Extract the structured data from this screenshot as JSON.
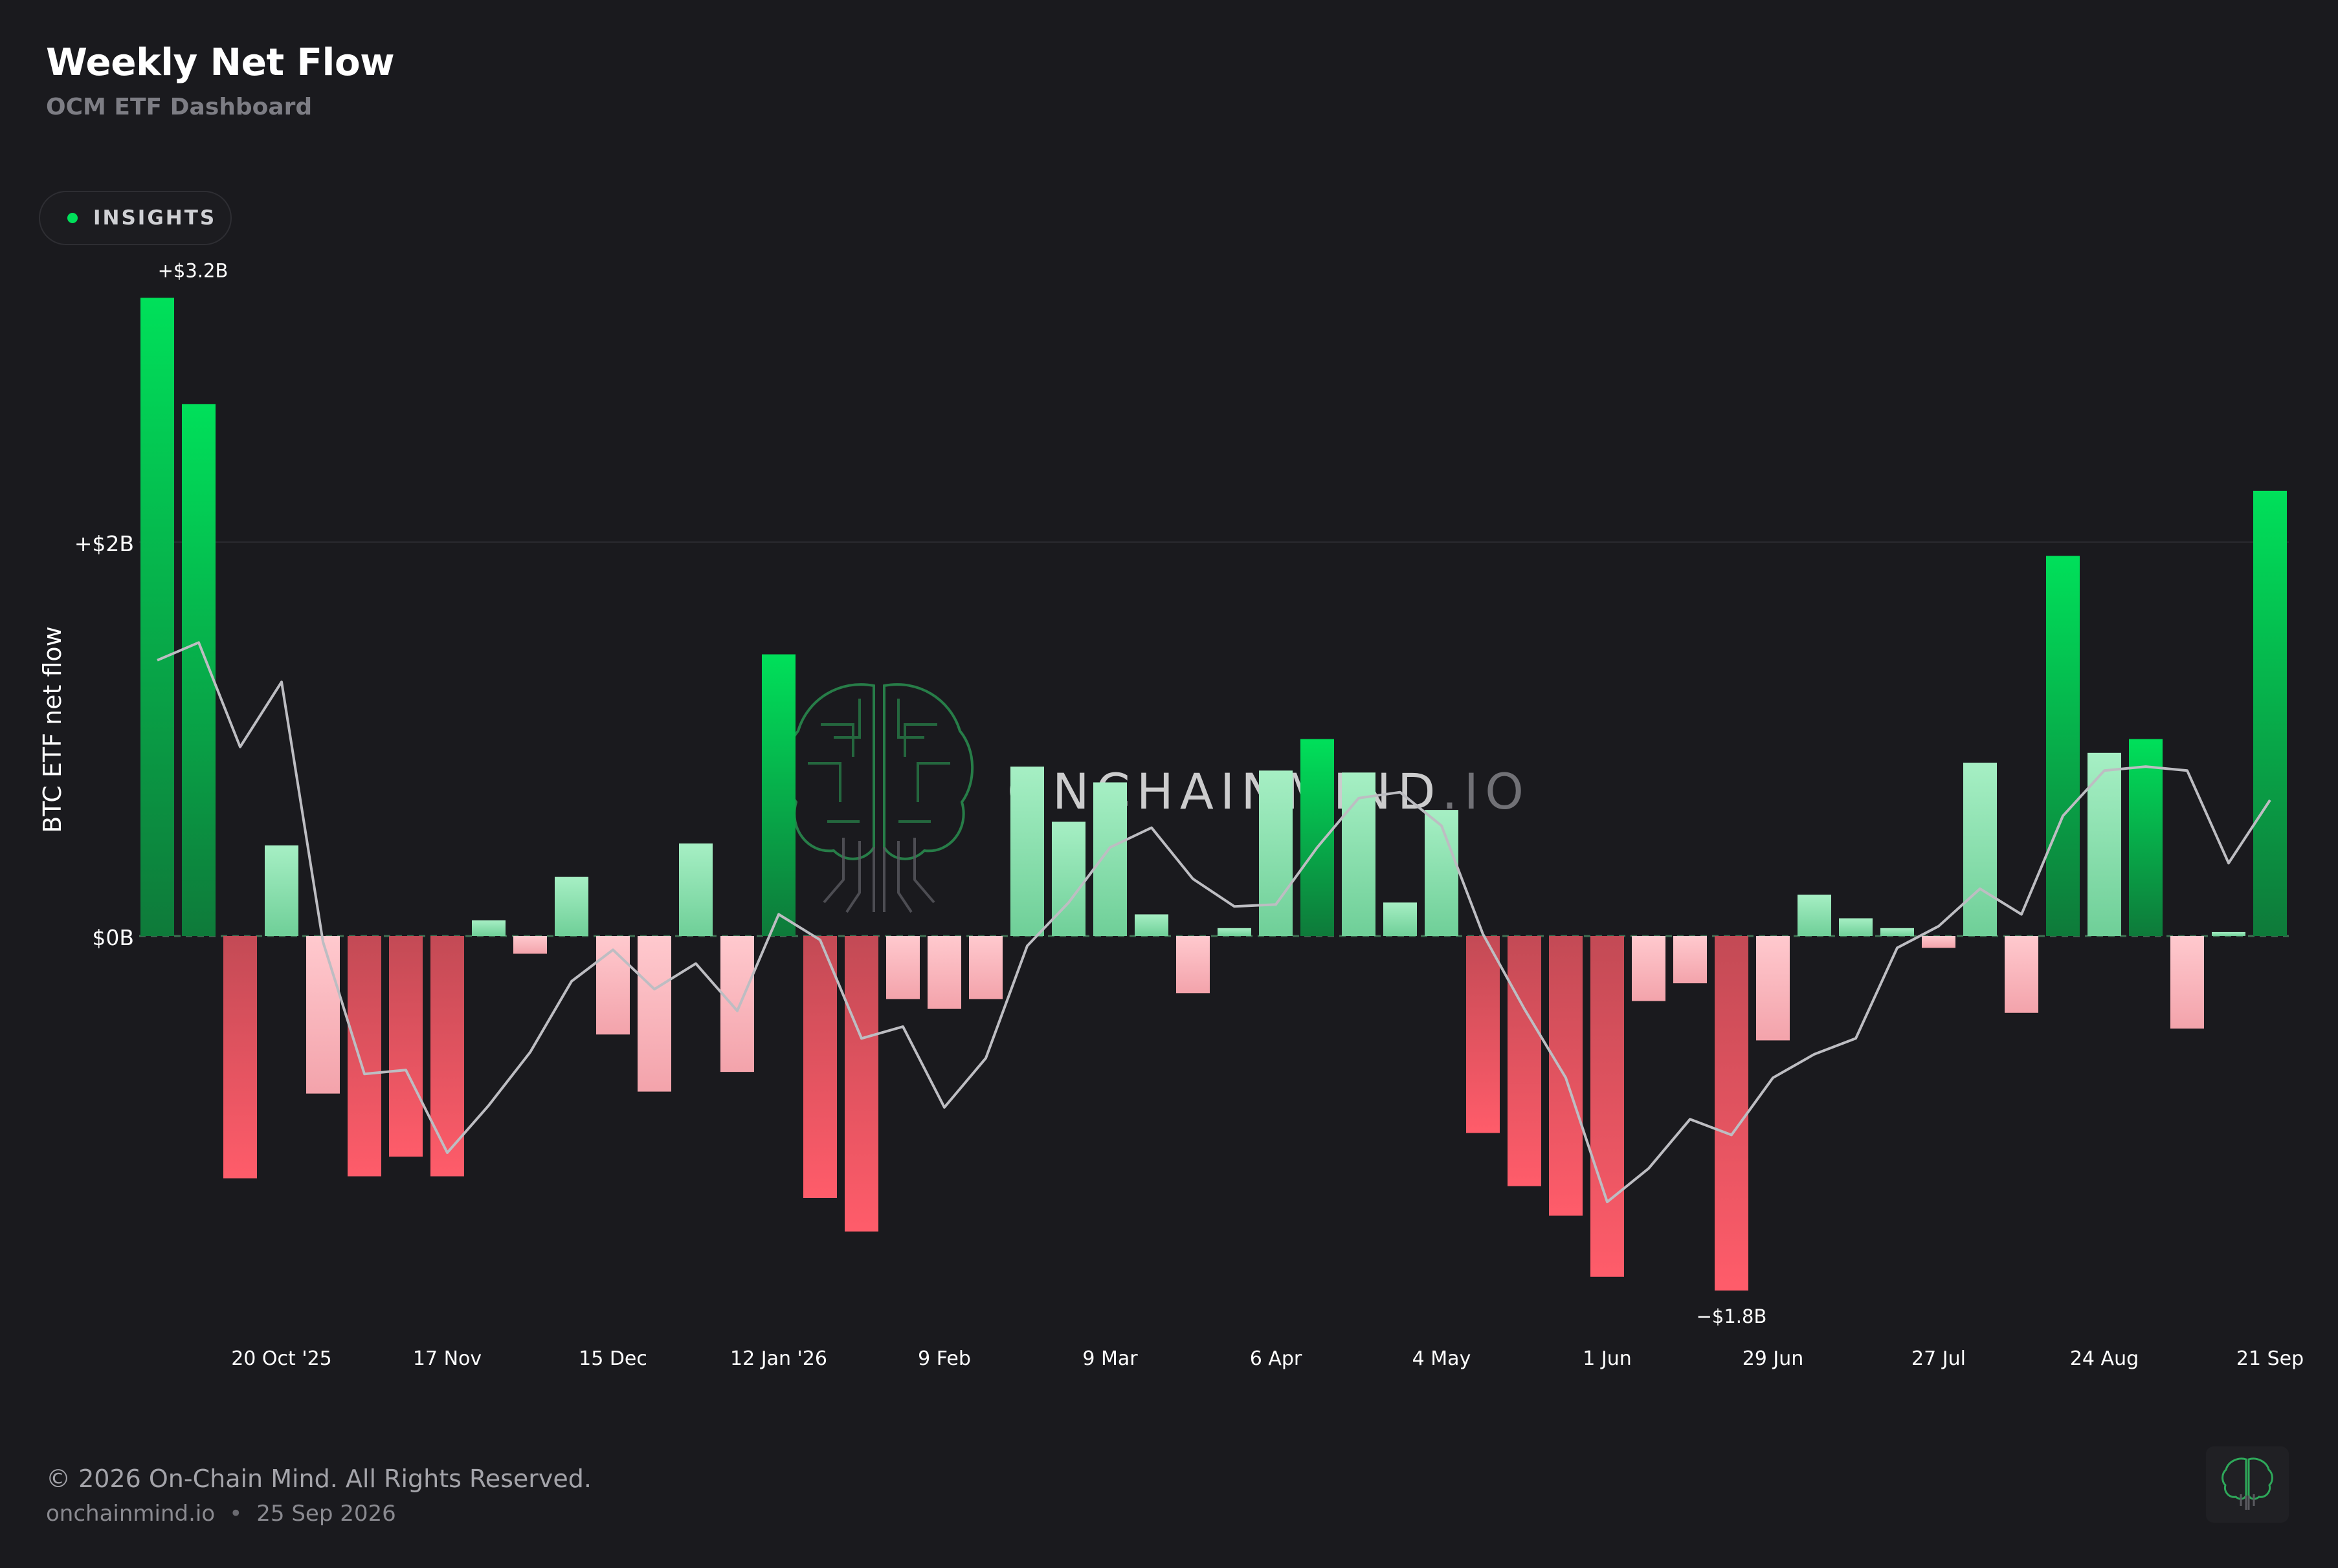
{
  "header": {
    "title": "Weekly Net Flow",
    "subtitle": "OCM ETF Dashboard"
  },
  "insights_button": {
    "label": "INSIGHTS",
    "dot_color": "#00e05a"
  },
  "watermark": {
    "text_main": "ONCHAINMIND",
    "text_suffix": ".IO",
    "icon": "brain-circuit-icon"
  },
  "footer": {
    "copyright": "© 2026 On-Chain Mind. All Rights Reserved.",
    "site": "onchainmind.io",
    "separator": "•",
    "date": "25 Sep 2026",
    "badge_icon": "brain-circuit-icon"
  },
  "colors": {
    "background": "#1a1a1e",
    "positive": "#00e05a",
    "negative": "#ff5c6a",
    "line": "#bdbdc2"
  },
  "chart_data": {
    "type": "bar",
    "title": "Weekly Net Flow",
    "ylabel": "BTC ETF net flow",
    "xlabel": "",
    "ylim": [
      -2.0,
      3.4
    ],
    "y_ticks": [
      {
        "value": 2,
        "label": "+$2B"
      },
      {
        "value": 0,
        "label": "$0B"
      }
    ],
    "x_ticks": [
      {
        "index": 3,
        "label": "20 Oct '25"
      },
      {
        "index": 7,
        "label": "17 Nov"
      },
      {
        "index": 11,
        "label": "15 Dec"
      },
      {
        "index": 15,
        "label": "12 Jan '26"
      },
      {
        "index": 19,
        "label": "9 Feb"
      },
      {
        "index": 23,
        "label": "9 Mar"
      },
      {
        "index": 27,
        "label": "6 Apr"
      },
      {
        "index": 31,
        "label": "4 May"
      },
      {
        "index": 35,
        "label": "1 Jun"
      },
      {
        "index": 39,
        "label": "29 Jun"
      },
      {
        "index": 43,
        "label": "27 Jul"
      },
      {
        "index": 47,
        "label": "24 Aug"
      },
      {
        "index": 51,
        "label": "21 Sep"
      }
    ],
    "annotations": [
      {
        "index": 0,
        "label": "+$3.2B"
      },
      {
        "index": 38,
        "label": "−$1.8B"
      }
    ],
    "series": [
      {
        "type": "bar",
        "values": [
          3.24,
          2.7,
          -1.23,
          0.46,
          -0.8,
          -1.22,
          -1.12,
          -1.22,
          0.08,
          -0.09,
          0.3,
          -0.5,
          -0.79,
          0.47,
          -0.69,
          1.43,
          -1.33,
          -1.5,
          -0.32,
          -0.37,
          -0.32,
          0.86,
          0.58,
          0.78,
          0.11,
          -0.29,
          0.04,
          0.84,
          1.0,
          0.83,
          0.17,
          0.64,
          -1.0,
          -1.27,
          -1.42,
          -1.73,
          -0.33,
          -0.24,
          -1.8,
          -0.53,
          0.21,
          0.09,
          0.04,
          -0.06,
          0.88,
          -0.39,
          1.93,
          0.93,
          1.0,
          -0.47,
          0.02,
          2.26
        ]
      },
      {
        "type": "line",
        "values": [
          1.4,
          1.49,
          0.96,
          1.29,
          -0.03,
          -0.7,
          -0.68,
          -1.1,
          -0.86,
          -0.59,
          -0.23,
          -0.07,
          -0.27,
          -0.14,
          -0.38,
          0.11,
          -0.02,
          -0.52,
          -0.46,
          -0.87,
          -0.62,
          -0.05,
          0.17,
          0.45,
          0.55,
          0.29,
          0.15,
          0.16,
          0.45,
          0.7,
          0.73,
          0.56,
          0.01,
          -0.37,
          -0.72,
          -1.35,
          -1.18,
          -0.93,
          -1.01,
          -0.72,
          -0.6,
          -0.52,
          -0.06,
          0.05,
          0.24,
          0.11,
          0.61,
          0.84,
          0.86,
          0.84,
          0.37,
          0.69
        ]
      }
    ]
  }
}
